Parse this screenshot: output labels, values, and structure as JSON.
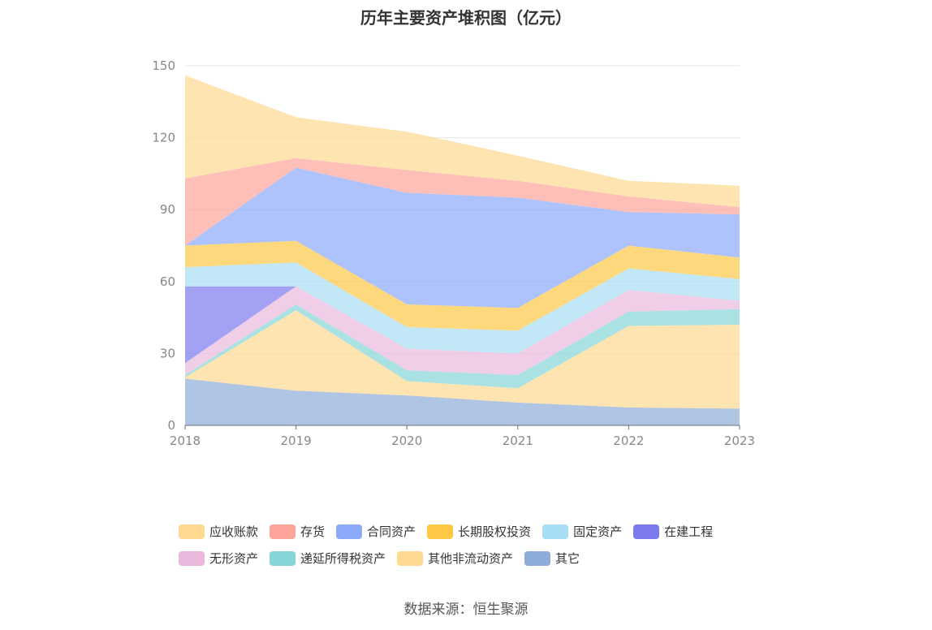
{
  "title": "历年主要资产堆积图（亿元）",
  "source": "数据来源：恒生聚源",
  "chart_data": {
    "type": "area",
    "stacked": true,
    "categories": [
      "2018",
      "2019",
      "2020",
      "2021",
      "2022",
      "2023"
    ],
    "y_ticks": [
      "0",
      "30",
      "60",
      "90",
      "120",
      "150"
    ],
    "ylim": [
      0,
      150
    ],
    "grid": true,
    "legend_position": "bottom",
    "series": [
      {
        "name": "其它",
        "color": "#8eacd9",
        "values": [
          19.5,
          14.5,
          12.5,
          9.5,
          7.5,
          7
        ]
      },
      {
        "name": "其他非流动资产",
        "color": "#fed98f",
        "values": [
          0.5,
          33.5,
          6,
          6,
          34,
          35
        ]
      },
      {
        "name": "递延所得税资产",
        "color": "#86d5d8",
        "values": [
          1,
          2.5,
          4.5,
          5.5,
          6,
          6.5
        ]
      },
      {
        "name": "无形资产",
        "color": "#ebb9de",
        "values": [
          5,
          7.5,
          9,
          9,
          9,
          3.5
        ]
      },
      {
        "name": "在建工程",
        "color": "#7b79ee",
        "values": [
          32,
          0,
          0,
          0,
          0,
          0
        ]
      },
      {
        "name": "固定资产",
        "color": "#a8def5",
        "values": [
          8,
          10,
          9,
          9.5,
          9,
          9
        ]
      },
      {
        "name": "长期股权投资",
        "color": "#fec844",
        "values": [
          9,
          9,
          9.5,
          9.5,
          9.5,
          9
        ]
      },
      {
        "name": "合同资产",
        "color": "#8caafa",
        "values": [
          0,
          30.5,
          46.5,
          46,
          14,
          18
        ]
      },
      {
        "name": "存货",
        "color": "#fda49b",
        "values": [
          28,
          4,
          9.5,
          7,
          6.5,
          3
        ]
      },
      {
        "name": "应收账款",
        "color": "#fed98f",
        "values": [
          43,
          17,
          16,
          10.5,
          6.5,
          9
        ]
      }
    ],
    "legend_order": [
      "应收账款",
      "存货",
      "合同资产",
      "长期股权投资",
      "固定资产",
      "在建工程",
      "无形资产",
      "递延所得税资产",
      "其他非流动资产",
      "其它"
    ]
  }
}
